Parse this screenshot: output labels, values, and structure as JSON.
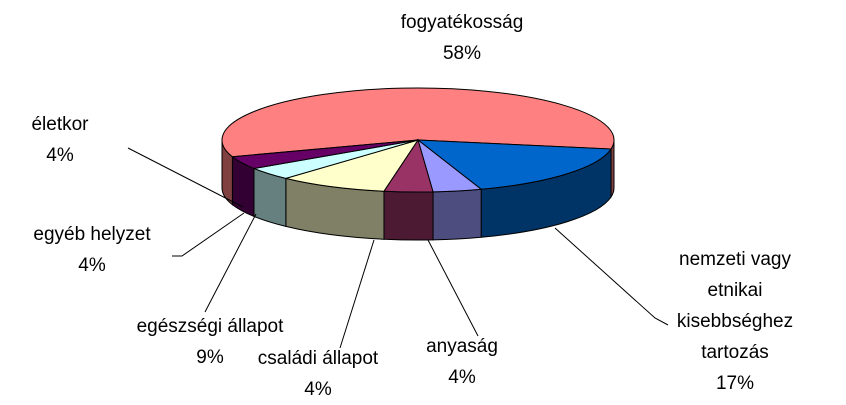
{
  "chart_data": {
    "type": "pie",
    "three_d": true,
    "categories": [
      "fogyatékosság",
      "nemzeti vagy etnikai kisebbséghez tartozás",
      "anyaság",
      "családi állapot",
      "egészségi állapot",
      "egyéb helyzet",
      "életkor"
    ],
    "values": [
      58,
      17,
      4,
      4,
      9,
      4,
      4
    ],
    "value_labels": [
      "58%",
      "17%",
      "4%",
      "4%",
      "9%",
      "4%",
      "4%"
    ],
    "colors": [
      "#ff8080",
      "#0066cc",
      "#9999ff",
      "#993366",
      "#ffffcc",
      "#ccffff",
      "#660066"
    ]
  }
}
